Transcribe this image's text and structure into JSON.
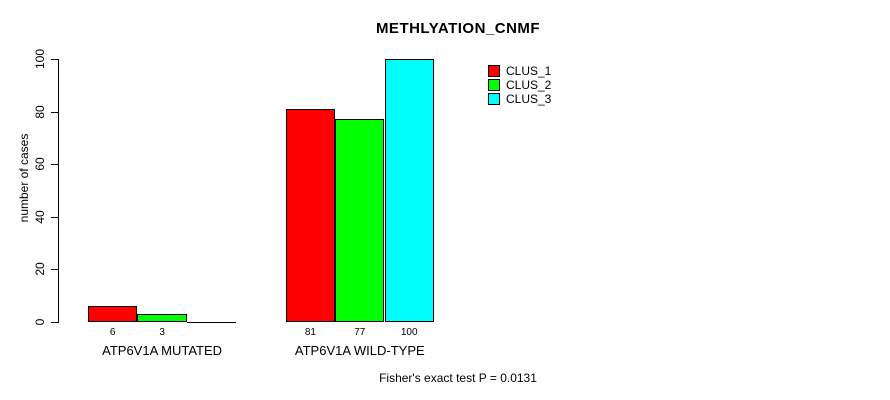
{
  "chart_data": {
    "type": "bar",
    "title": "METHLYATION_CNMF",
    "ylabel": "number of cases",
    "xlabel": "",
    "ylim": [
      0,
      100
    ],
    "yticks": [
      0,
      20,
      40,
      60,
      80,
      100
    ],
    "grid": false,
    "background": "#FFFFFF",
    "axis_color": "#000000",
    "categories": [
      "ATP6V1A MUTATED",
      "ATP6V1A WILD-TYPE"
    ],
    "series": [
      {
        "name": "CLUS_1",
        "color": "#FF0000",
        "values": [
          6,
          81
        ]
      },
      {
        "name": "CLUS_2",
        "color": "#00FF00",
        "values": [
          3,
          77
        ]
      },
      {
        "name": "CLUS_3",
        "color": "#00FFFF",
        "values": [
          0,
          100
        ]
      }
    ],
    "bar_value_labels": [
      [
        "6",
        "3",
        ""
      ],
      [
        "81",
        "77",
        "100"
      ]
    ],
    "legend": {
      "position": "top-right",
      "entries": [
        {
          "label": "CLUS_1",
          "color": "#FF0000"
        },
        {
          "label": "CLUS_2",
          "color": "#00FF00"
        },
        {
          "label": "CLUS_3",
          "color": "#00FFFF"
        }
      ]
    },
    "annotation": "Fisher's exact test P = 0.0131"
  }
}
